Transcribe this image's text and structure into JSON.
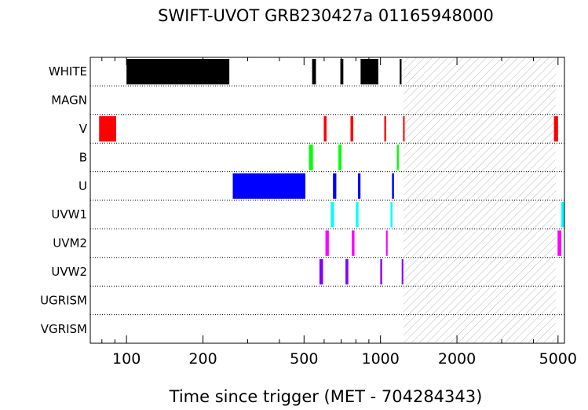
{
  "chart_data": {
    "type": "timeline",
    "title": "SWIFT-UVOT GRB230427a 01165948000",
    "xlabel": "Time since trigger (MET - 704284343)",
    "xscale": "log",
    "xlim": [
      72,
      5300
    ],
    "x_ticks": [
      100,
      200,
      500,
      1000,
      2000,
      5000
    ],
    "x_tick_labels": [
      "100",
      "200",
      "500",
      "1000",
      "2000",
      "5000"
    ],
    "rows": [
      "WHITE",
      "MAGN",
      "V",
      "B",
      "U",
      "UVW1",
      "UVM2",
      "UVW2",
      "UGRISM",
      "VGRISM"
    ],
    "hatched_region": [
      1230,
      4900
    ],
    "exposures": [
      {
        "filter": "WHITE",
        "color": "#000000",
        "intervals": [
          [
            100,
            254
          ],
          [
            538,
            557
          ],
          [
            695,
            714
          ],
          [
            835,
            980
          ],
          [
            1190,
            1210
          ]
        ]
      },
      {
        "filter": "MAGN",
        "color": "#000000",
        "intervals": []
      },
      {
        "filter": "V",
        "color": "#ff0000",
        "intervals": [
          [
            78,
            91
          ],
          [
            598,
            613
          ],
          [
            762,
            781
          ],
          [
            1035,
            1052
          ],
          [
            1227,
            1240
          ],
          [
            4820,
            5000
          ]
        ]
      },
      {
        "filter": "B",
        "color": "#00ff00",
        "intervals": [
          [
            523,
            542
          ],
          [
            683,
            702
          ],
          [
            1160,
            1180
          ]
        ]
      },
      {
        "filter": "U",
        "color": "#0000ff",
        "intervals": [
          [
            262,
            506
          ],
          [
            650,
            670
          ],
          [
            815,
            834
          ],
          [
            1110,
            1130
          ]
        ]
      },
      {
        "filter": "UVW1",
        "color": "#00ffff",
        "intervals": [
          [
            637,
            656
          ],
          [
            800,
            819
          ],
          [
            1095,
            1115
          ],
          [
            5150,
            5300
          ]
        ]
      },
      {
        "filter": "UVM2",
        "color": "#ff00ff",
        "intervals": [
          [
            607,
            626
          ],
          [
            771,
            790
          ],
          [
            1051,
            1067
          ],
          [
            4980,
            5150
          ]
        ]
      },
      {
        "filter": "UVW2",
        "color": "#8000ff",
        "intervals": [
          [
            575,
            594
          ],
          [
            728,
            747
          ],
          [
            998,
            1015
          ],
          [
            1212,
            1230
          ]
        ]
      },
      {
        "filter": "UGRISM",
        "color": "#000000",
        "intervals": []
      },
      {
        "filter": "VGRISM",
        "color": "#000000",
        "intervals": []
      }
    ]
  }
}
